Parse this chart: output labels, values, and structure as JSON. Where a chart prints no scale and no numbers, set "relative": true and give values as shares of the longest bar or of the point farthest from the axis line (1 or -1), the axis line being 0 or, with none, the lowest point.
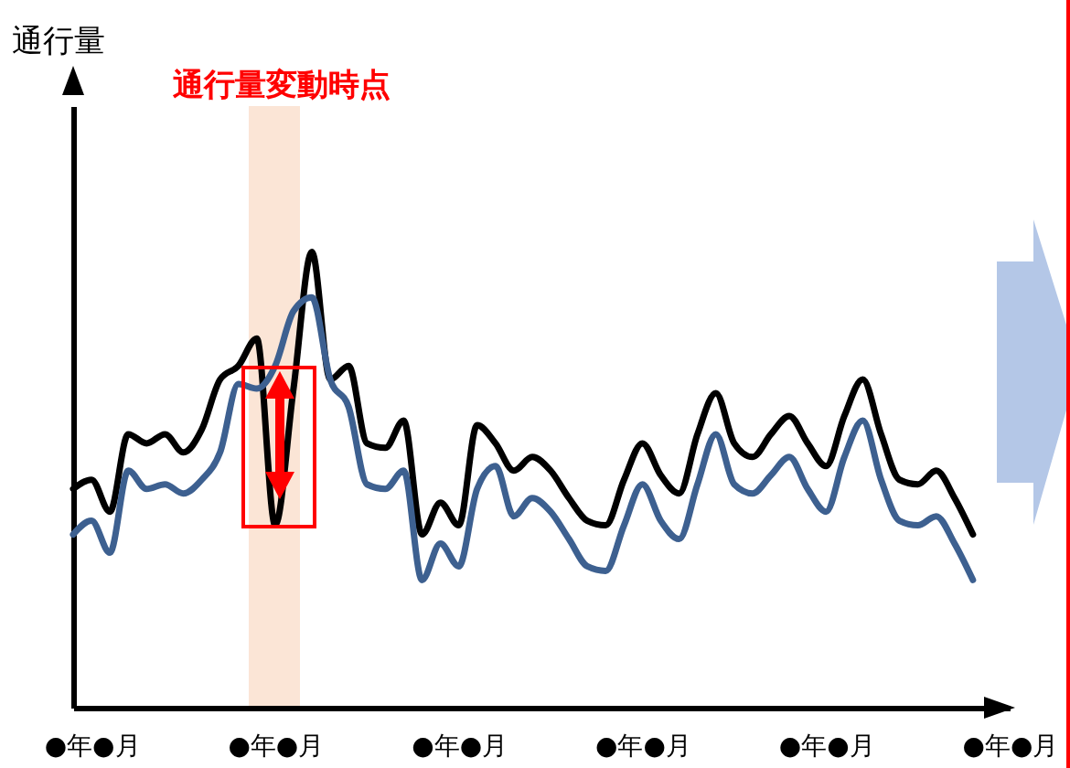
{
  "chart_data": {
    "type": "line",
    "relative": true,
    "line_style": "solid",
    "marker": "none",
    "grid": false,
    "categories": [
      null,
      "●年●月",
      null,
      null,
      null,
      null,
      null,
      null,
      null,
      null,
      null,
      "●年●月",
      null,
      null,
      null,
      null,
      null,
      null,
      null,
      null,
      null,
      "●年●月",
      null,
      null,
      null,
      null,
      null,
      null,
      null,
      null,
      null,
      "●年●月",
      null,
      null,
      null,
      null,
      null,
      null,
      null,
      null,
      null,
      "●年●月",
      null,
      null,
      null,
      null,
      null,
      null,
      null,
      null,
      null,
      "●年●月"
    ],
    "annotations": [
      "通行量変動時点",
      "通行量"
    ],
    "series": [
      {
        "color": "#000000",
        "values": [
          0.48,
          0.5,
          0.43,
          0.6,
          0.58,
          0.6,
          0.56,
          0.61,
          0.72,
          0.75,
          0.81,
          0.4,
          0.7,
          1.0,
          0.72,
          0.75,
          0.58,
          0.57,
          0.63,
          0.38,
          0.45,
          0.4,
          0.62,
          0.58,
          0.52,
          0.55,
          0.52,
          0.46,
          0.41,
          0.4,
          0.5,
          0.58,
          0.51,
          0.47,
          0.6,
          0.69,
          0.58,
          0.55,
          0.6,
          0.64,
          0.58,
          0.53,
          0.64,
          0.72,
          0.6,
          0.5,
          0.49,
          0.52,
          0.46,
          0.38,
          null,
          null
        ]
      },
      {
        "color": "#3d6090",
        "values": [
          0.38,
          0.41,
          0.34,
          0.52,
          0.48,
          0.49,
          0.47,
          0.5,
          0.56,
          0.71,
          0.7,
          0.75,
          0.87,
          0.9,
          0.72,
          0.66,
          0.49,
          0.48,
          0.52,
          0.28,
          0.36,
          0.31,
          0.48,
          0.53,
          0.42,
          0.46,
          0.43,
          0.37,
          0.31,
          0.3,
          0.4,
          0.49,
          0.41,
          0.37,
          0.49,
          0.6,
          0.49,
          0.47,
          0.51,
          0.55,
          0.48,
          0.43,
          0.55,
          0.63,
          0.5,
          0.41,
          0.4,
          0.42,
          0.36,
          0.28,
          null,
          null
        ]
      }
    ]
  }
}
